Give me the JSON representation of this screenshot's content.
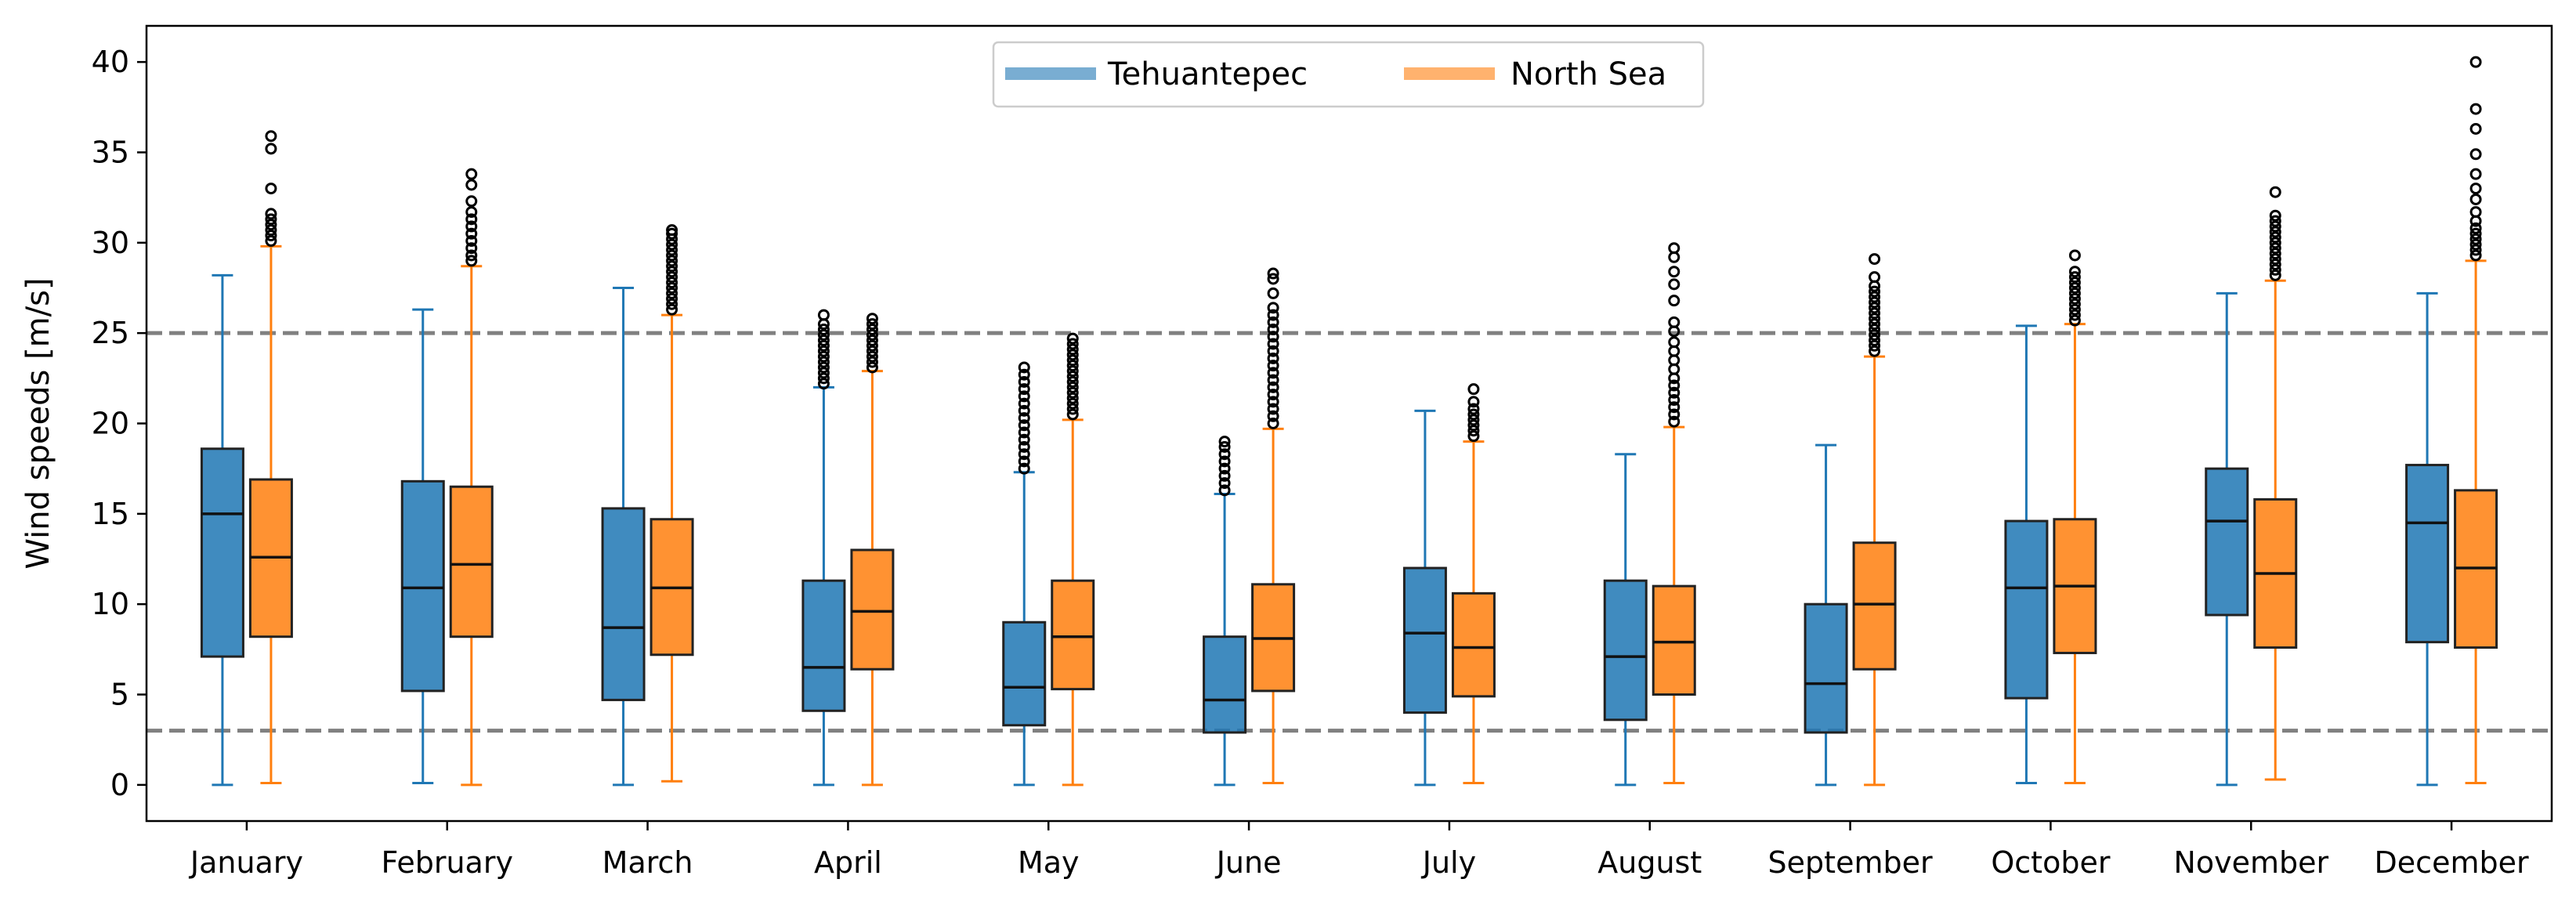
{
  "chart_data": {
    "type": "box",
    "title": "",
    "xlabel": "",
    "ylabel": "Wind speeds [m/s]",
    "ylim": [
      -2,
      42
    ],
    "yticks": [
      0,
      5,
      10,
      15,
      20,
      25,
      30,
      35,
      40
    ],
    "categories": [
      "January",
      "February",
      "March",
      "April",
      "May",
      "June",
      "July",
      "August",
      "September",
      "October",
      "November",
      "December"
    ],
    "reference_lines": [
      3,
      25
    ],
    "legend_position": "top-center",
    "series": [
      {
        "name": "Tehuantepec",
        "color": "#1f77b4",
        "whisker_low": [
          0,
          0.1,
          0,
          0,
          0,
          0,
          0,
          0,
          0,
          0.1,
          0,
          0
        ],
        "q1": [
          7.1,
          5.2,
          4.7,
          4.1,
          3.3,
          2.9,
          4.0,
          3.6,
          2.9,
          4.8,
          9.4,
          7.9
        ],
        "median": [
          15.0,
          10.9,
          8.7,
          6.5,
          5.4,
          4.7,
          8.4,
          7.1,
          5.6,
          10.9,
          14.6,
          14.5
        ],
        "q3": [
          18.6,
          16.8,
          15.3,
          11.3,
          9.0,
          8.2,
          12.0,
          11.3,
          10.0,
          14.6,
          17.5,
          17.7
        ],
        "whisker_high": [
          28.2,
          26.3,
          27.5,
          22.0,
          17.3,
          16.1,
          20.7,
          18.3,
          18.8,
          25.4,
          27.2,
          27.2
        ],
        "outliers": [
          [],
          [],
          [],
          [
            22.2,
            22.5,
            22.8,
            23.1,
            23.4,
            23.7,
            24.0,
            24.3,
            24.6,
            24.9,
            25.2,
            25.5,
            26.0
          ],
          [
            17.5,
            17.9,
            18.3,
            18.7,
            19.1,
            19.5,
            19.9,
            20.3,
            20.7,
            21.1,
            21.5,
            21.9,
            22.3,
            22.7,
            23.1
          ],
          [
            16.3,
            16.7,
            17.1,
            17.5,
            17.9,
            18.3,
            18.7,
            19.0
          ],
          [],
          [],
          [],
          [],
          [],
          []
        ]
      },
      {
        "name": "North Sea",
        "color": "#ff7f0e",
        "whisker_low": [
          0.1,
          0,
          0.2,
          0,
          0,
          0.1,
          0.1,
          0.1,
          0,
          0.1,
          0.3,
          0.1
        ],
        "q1": [
          8.2,
          8.2,
          7.2,
          6.4,
          5.3,
          5.2,
          4.9,
          5.0,
          6.4,
          7.3,
          7.6,
          7.6
        ],
        "median": [
          12.6,
          12.2,
          10.9,
          9.6,
          8.2,
          8.1,
          7.6,
          7.9,
          10.0,
          11.0,
          11.7,
          12.0
        ],
        "q3": [
          16.9,
          16.5,
          14.7,
          13.0,
          11.3,
          11.1,
          10.6,
          11.0,
          13.4,
          14.7,
          15.8,
          16.3
        ],
        "whisker_high": [
          29.8,
          28.7,
          26.0,
          22.9,
          20.2,
          19.7,
          19.0,
          19.8,
          23.7,
          25.5,
          27.9,
          29.0
        ],
        "outliers": [
          [
            30.1,
            30.4,
            30.7,
            31.0,
            31.3,
            31.6,
            33.0,
            35.2,
            35.9
          ],
          [
            29.0,
            29.3,
            29.7,
            30.1,
            30.5,
            30.9,
            31.3,
            31.7,
            32.3,
            33.2,
            33.8
          ],
          [
            26.3,
            26.6,
            26.9,
            27.2,
            27.5,
            27.8,
            28.1,
            28.4,
            28.7,
            29.0,
            29.3,
            29.6,
            29.9,
            30.2,
            30.5,
            30.7
          ],
          [
            23.1,
            23.4,
            23.7,
            24.0,
            24.3,
            24.6,
            24.9,
            25.2,
            25.5,
            25.8
          ],
          [
            20.5,
            20.8,
            21.1,
            21.4,
            21.7,
            22.0,
            22.3,
            22.6,
            22.9,
            23.2,
            23.5,
            23.8,
            24.1,
            24.4,
            24.7
          ],
          [
            20.0,
            20.4,
            20.8,
            21.2,
            21.6,
            22.0,
            22.4,
            22.8,
            23.2,
            23.6,
            24.0,
            24.4,
            24.8,
            25.2,
            25.6,
            26.0,
            26.4,
            27.2,
            28.0,
            28.3
          ],
          [
            19.3,
            19.6,
            19.9,
            20.2,
            20.5,
            20.8,
            21.2,
            21.9
          ],
          [
            20.1,
            20.5,
            20.9,
            21.3,
            21.7,
            22.1,
            22.5,
            23.0,
            23.5,
            24.0,
            24.5,
            25.1,
            25.6,
            26.8,
            27.7,
            28.4,
            29.2,
            29.7
          ],
          [
            24.0,
            24.3,
            24.6,
            24.9,
            25.2,
            25.5,
            25.8,
            26.1,
            26.4,
            26.7,
            27.0,
            27.3,
            27.6,
            28.1,
            29.1
          ],
          [
            25.7,
            26.0,
            26.3,
            26.6,
            26.9,
            27.2,
            27.5,
            27.8,
            28.1,
            28.4,
            29.3
          ],
          [
            28.2,
            28.5,
            28.8,
            29.1,
            29.4,
            29.7,
            30.0,
            30.3,
            30.6,
            30.9,
            31.2,
            31.5,
            32.8
          ],
          [
            29.3,
            29.6,
            29.9,
            30.2,
            30.5,
            30.8,
            31.2,
            31.7,
            32.4,
            33.0,
            33.8,
            34.9,
            36.3,
            37.4,
            40.0
          ]
        ]
      }
    ]
  }
}
